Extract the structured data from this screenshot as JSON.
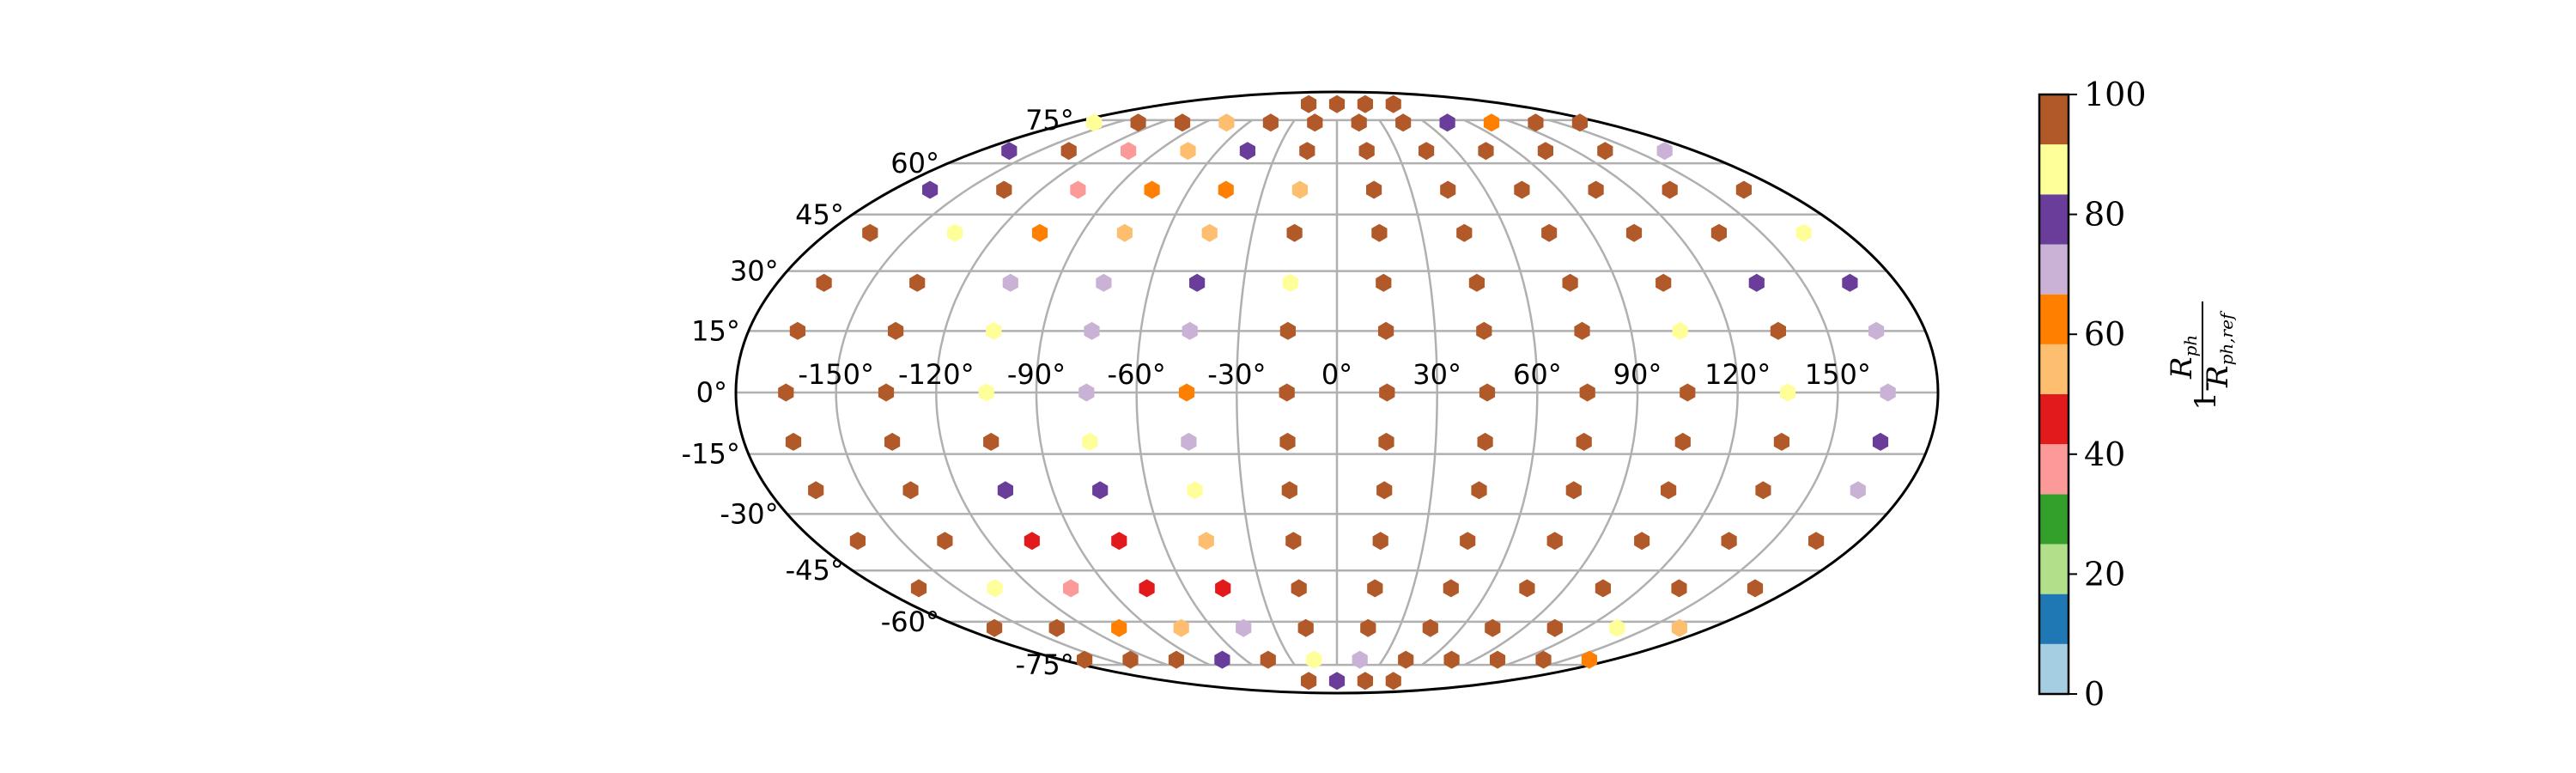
{
  "chart_data": {
    "type": "scatter",
    "projection": "mollweide",
    "grid": true,
    "longitude_ticks": [
      "-150°",
      "-120°",
      "-90°",
      "-60°",
      "-30°",
      "0°",
      "30°",
      "60°",
      "90°",
      "120°",
      "150°"
    ],
    "latitude_ticks": [
      "-75°",
      "-60°",
      "-45°",
      "-30°",
      "-15°",
      "0°",
      "15°",
      "30°",
      "45°",
      "60°",
      "75°"
    ],
    "colorbar": {
      "label_numerator": "R",
      "label_numerator_sub": "ph",
      "label_prefix": "1-",
      "label_denominator": "R",
      "label_denominator_sub": "ph,ref",
      "ticks": [
        "0",
        "20",
        "40",
        "60",
        "80",
        "100"
      ],
      "range": [
        0,
        100
      ],
      "bins": [
        {
          "lo": 0,
          "hi": 8.33,
          "color": "#a6cee3"
        },
        {
          "lo": 8.33,
          "hi": 16.67,
          "color": "#1f78b4"
        },
        {
          "lo": 16.67,
          "hi": 25,
          "color": "#b2df8a"
        },
        {
          "lo": 25,
          "hi": 33.33,
          "color": "#33a02c"
        },
        {
          "lo": 33.33,
          "hi": 41.67,
          "color": "#fb9a99"
        },
        {
          "lo": 41.67,
          "hi": 50,
          "color": "#e31a1c"
        },
        {
          "lo": 50,
          "hi": 58.33,
          "color": "#fdbf6f"
        },
        {
          "lo": 58.33,
          "hi": 66.67,
          "color": "#ff7f00"
        },
        {
          "lo": 66.67,
          "hi": 75,
          "color": "#cab2d6"
        },
        {
          "lo": 75,
          "hi": 83.33,
          "color": "#6a3d9a"
        },
        {
          "lo": 83.33,
          "hi": 91.67,
          "color": "#ffff99"
        },
        {
          "lo": 91.67,
          "hi": 100,
          "color": "#b15928"
        }
      ]
    },
    "series": [
      {
        "lat": 82,
        "lon": [
          -30,
          0,
          30,
          60
        ],
        "values": [
          98,
          98,
          98,
          98
        ]
      },
      {
        "lat": 74,
        "lon": [
          -165,
          -135,
          -105,
          -75,
          -45,
          -15,
          15,
          45,
          75,
          105,
          135,
          165
        ],
        "values": [
          88,
          98,
          98,
          55,
          98,
          98,
          98,
          98,
          80,
          62,
          98,
          98
        ]
      },
      {
        "lat": 64,
        "lon": [
          -165,
          -135,
          -105,
          -75,
          -45,
          -15,
          15,
          45,
          75,
          105,
          135,
          165
        ],
        "values": [
          80,
          98,
          38,
          55,
          80,
          98,
          98,
          98,
          98,
          98,
          98,
          70
        ]
      },
      {
        "lat": 52,
        "lon": [
          -165,
          -135,
          -105,
          -75,
          -45,
          -15,
          15,
          45,
          75,
          105,
          135,
          165
        ],
        "values": [
          80,
          98,
          38,
          62,
          62,
          55,
          98,
          98,
          98,
          98,
          98,
          98
        ]
      },
      {
        "lat": 40,
        "lon": [
          -165,
          -135,
          -105,
          -75,
          -45,
          -15,
          15,
          45,
          75,
          105,
          135,
          165
        ],
        "values": [
          98,
          88,
          62,
          55,
          55,
          98,
          98,
          98,
          98,
          98,
          98,
          88
        ]
      },
      {
        "lat": 27,
        "lon": [
          -165,
          -135,
          -105,
          -75,
          -45,
          -15,
          15,
          45,
          75,
          105,
          135,
          165
        ],
        "values": [
          98,
          98,
          70,
          70,
          80,
          88,
          98,
          98,
          98,
          98,
          80,
          80
        ]
      },
      {
        "lat": 15,
        "lon": [
          -165,
          -135,
          -105,
          -75,
          -45,
          -15,
          15,
          45,
          75,
          105,
          135,
          165
        ],
        "values": [
          98,
          98,
          88,
          70,
          70,
          98,
          98,
          98,
          98,
          88,
          98,
          70
        ]
      },
      {
        "lat": 0,
        "lon": [
          -165,
          -135,
          -105,
          -75,
          -45,
          -15,
          15,
          45,
          75,
          105,
          135,
          165
        ],
        "values": [
          98,
          98,
          88,
          70,
          62,
          98,
          98,
          98,
          98,
          98,
          88,
          70
        ]
      },
      {
        "lat": -12,
        "lon": [
          -165,
          -135,
          -105,
          -75,
          -45,
          -15,
          15,
          45,
          75,
          105,
          135,
          165
        ],
        "values": [
          98,
          98,
          98,
          88,
          70,
          98,
          98,
          98,
          98,
          98,
          98,
          80
        ]
      },
      {
        "lat": -24,
        "lon": [
          -165,
          -135,
          -105,
          -75,
          -45,
          -15,
          15,
          45,
          75,
          105,
          135,
          165
        ],
        "values": [
          98,
          98,
          80,
          80,
          88,
          98,
          98,
          98,
          98,
          98,
          98,
          70
        ]
      },
      {
        "lat": -37,
        "lon": [
          -165,
          -135,
          -105,
          -75,
          -45,
          -15,
          15,
          45,
          75,
          105,
          135,
          165
        ],
        "values": [
          98,
          98,
          45,
          45,
          55,
          98,
          98,
          98,
          98,
          98,
          98,
          98
        ]
      },
      {
        "lat": -50,
        "lon": [
          -165,
          -135,
          -105,
          -75,
          -45,
          -15,
          15,
          45,
          75,
          105,
          135,
          165
        ],
        "values": [
          98,
          88,
          38,
          45,
          45,
          98,
          98,
          98,
          98,
          98,
          98,
          98
        ]
      },
      {
        "lat": -62,
        "lon": [
          -165,
          -135,
          -105,
          -75,
          -45,
          -15,
          15,
          45,
          75,
          105,
          135,
          165
        ],
        "values": [
          98,
          98,
          62,
          55,
          70,
          98,
          98,
          98,
          98,
          98,
          88,
          55
        ]
      },
      {
        "lat": -73,
        "lon": [
          -165,
          -135,
          -105,
          -75,
          -45,
          -15,
          15,
          45,
          75,
          105,
          135,
          165
        ],
        "values": [
          98,
          98,
          98,
          80,
          98,
          88,
          70,
          98,
          98,
          98,
          98,
          62
        ]
      },
      {
        "lat": -82,
        "lon": [
          -30,
          0,
          30,
          60
        ],
        "values": [
          98,
          80,
          98,
          98
        ]
      }
    ]
  }
}
